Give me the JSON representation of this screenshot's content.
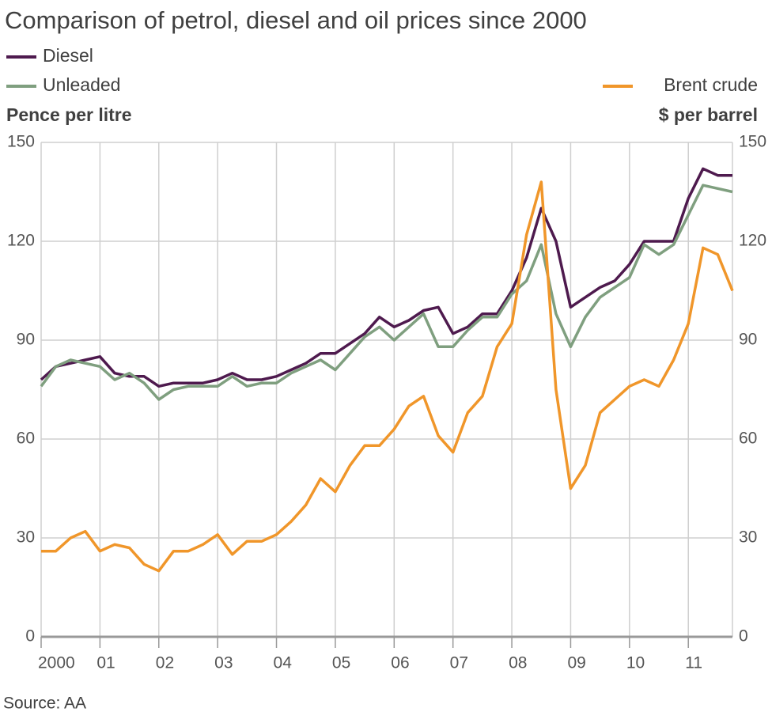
{
  "chart_data": {
    "type": "line",
    "title": "Comparison of petrol, diesel and oil prices since 2000",
    "y_label": "Pence per litre",
    "y2_label": "$ per barrel",
    "source": "Source: AA",
    "grid": true,
    "x": [
      2000,
      2000.25,
      2000.5,
      2000.75,
      2001,
      2001.25,
      2001.5,
      2001.75,
      2002,
      2002.25,
      2002.5,
      2002.75,
      2003,
      2003.25,
      2003.5,
      2003.75,
      2004,
      2004.25,
      2004.5,
      2004.75,
      2005,
      2005.25,
      2005.5,
      2005.75,
      2006,
      2006.25,
      2006.5,
      2006.75,
      2007,
      2007.25,
      2007.5,
      2007.75,
      2008,
      2008.25,
      2008.5,
      2008.75,
      2009,
      2009.25,
      2009.5,
      2009.75,
      2010,
      2010.25,
      2010.5,
      2010.75,
      2011,
      2011.25,
      2011.5,
      2011.75
    ],
    "xlim": [
      2000,
      2011.75
    ],
    "xticks": [
      {
        "value": 2000,
        "label": "2000"
      },
      {
        "value": 2001,
        "label": "01"
      },
      {
        "value": 2002,
        "label": "02"
      },
      {
        "value": 2003,
        "label": "03"
      },
      {
        "value": 2004,
        "label": "04"
      },
      {
        "value": 2005,
        "label": "05"
      },
      {
        "value": 2006,
        "label": "06"
      },
      {
        "value": 2007,
        "label": "07"
      },
      {
        "value": 2008,
        "label": "08"
      },
      {
        "value": 2009,
        "label": "09"
      },
      {
        "value": 2010,
        "label": "10"
      },
      {
        "value": 2011,
        "label": "11"
      }
    ],
    "ylim": [
      0,
      150
    ],
    "yticks": [
      0,
      30,
      60,
      90,
      120,
      150
    ],
    "y2lim": [
      0,
      150
    ],
    "y2ticks": [
      0,
      30,
      60,
      90,
      120,
      150
    ],
    "series": [
      {
        "name": "Diesel",
        "color": "#4e1a4e",
        "axis": "y",
        "values": [
          78,
          82,
          83,
          84,
          85,
          80,
          79,
          79,
          76,
          77,
          77,
          77,
          78,
          80,
          78,
          78,
          79,
          81,
          83,
          86,
          86,
          89,
          92,
          97,
          94,
          96,
          99,
          100,
          92,
          94,
          98,
          98,
          105,
          115,
          130,
          120,
          100,
          103,
          106,
          108,
          113,
          120,
          120,
          120,
          133,
          142,
          140,
          140
        ]
      },
      {
        "name": "Unleaded",
        "color": "#7f9f7f",
        "axis": "y",
        "values": [
          76,
          82,
          84,
          83,
          82,
          78,
          80,
          77,
          72,
          75,
          76,
          76,
          76,
          79,
          76,
          77,
          77,
          80,
          82,
          84,
          81,
          86,
          91,
          94,
          90,
          94,
          98,
          88,
          88,
          93,
          97,
          97,
          104,
          108,
          119,
          98,
          88,
          97,
          103,
          106,
          109,
          119,
          116,
          119,
          128,
          137,
          136,
          135
        ]
      },
      {
        "name": "Brent crude",
        "color": "#f0962a",
        "axis": "y2",
        "values": [
          26,
          26,
          30,
          32,
          26,
          28,
          27,
          22,
          20,
          26,
          26,
          28,
          31,
          25,
          29,
          29,
          31,
          35,
          40,
          48,
          44,
          52,
          58,
          58,
          63,
          70,
          73,
          61,
          56,
          68,
          73,
          88,
          95,
          122,
          138,
          75,
          45,
          52,
          68,
          72,
          76,
          78,
          76,
          84,
          95,
          118,
          116,
          105
        ]
      }
    ]
  }
}
